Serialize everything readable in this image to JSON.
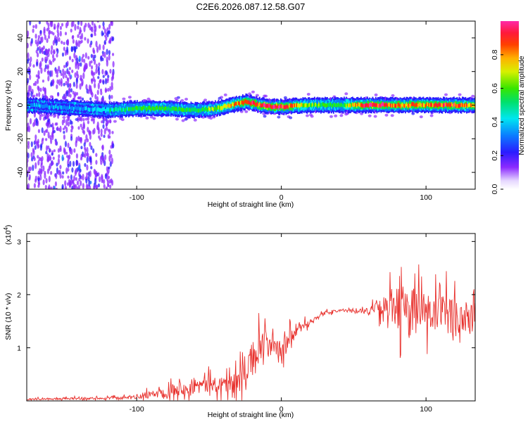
{
  "chart_data": [
    {
      "type": "heatmap",
      "title": "C2E6.2026.087.12.58.G07",
      "xlabel": "Height of straight line (km)",
      "ylabel": "Frequency (Hz)",
      "xlim": [
        -176,
        134
      ],
      "ylim": [
        -50,
        50
      ],
      "xticks": [
        -100,
        0,
        100
      ],
      "xtick_labels": [
        "-100",
        "0",
        "100"
      ],
      "yticks": [
        -40,
        -20,
        0,
        20,
        40
      ],
      "ytick_labels": [
        "-40",
        "-20",
        "0",
        "20",
        "40"
      ],
      "colorbar": {
        "label": "Normalized spectral amplitude",
        "range": [
          0,
          1
        ],
        "ticks": [
          0.0,
          0.2,
          0.4,
          0.6,
          0.8
        ],
        "tick_labels": [
          "0.0",
          "0.2",
          "0.4",
          "0.6",
          "0.8"
        ],
        "colormap": "rainbow (white-violet-blue-cyan-green-yellow-red-pink)"
      },
      "ridge": {
        "description": "Spectral ridge near 0 Hz; frequency trace center (Hz) vs height (km)",
        "x": [
          -176,
          -140,
          -120,
          -100,
          -80,
          -60,
          -45,
          -35,
          -25,
          -15,
          -5,
          0,
          20,
          40,
          60,
          80,
          100,
          120,
          134
        ],
        "y": [
          0,
          -2,
          -3,
          -2,
          -2,
          -3,
          -2,
          0,
          2,
          0,
          -1,
          -1,
          0,
          0,
          0,
          0,
          0,
          0,
          0
        ],
        "peak_amplitude": [
          0.3,
          0.3,
          0.4,
          0.5,
          0.5,
          0.5,
          0.6,
          0.7,
          0.85,
          0.9,
          0.9,
          0.9,
          0.55,
          0.5,
          0.9,
          0.8,
          0.8,
          0.85,
          0.7
        ]
      }
    },
    {
      "type": "line",
      "xlabel": "Height of straight line (km)",
      "ylabel": "SNR (10 * v/v)",
      "y_multiplier": "(x10",
      "y_multiplier_exp": "4",
      "y_multiplier_close": ")",
      "xlim": [
        -176,
        134
      ],
      "ylim": [
        0,
        3.15
      ],
      "xticks": [
        -100,
        0,
        100
      ],
      "xtick_labels": [
        "-100",
        "0",
        "100"
      ],
      "yticks": [
        1,
        2,
        3
      ],
      "ytick_labels": [
        "1",
        "2",
        "3"
      ],
      "series": [
        {
          "name": "SNR",
          "color": "#e8302c",
          "x": [
            -176,
            -150,
            -125,
            -110,
            -100,
            -90,
            -80,
            -70,
            -60,
            -50,
            -40,
            -30,
            -25,
            -20,
            -15,
            -10,
            -5,
            0,
            5,
            10,
            20,
            30,
            40,
            50,
            60,
            70,
            80,
            90,
            100,
            110,
            120,
            134
          ],
          "y": [
            0.03,
            0.04,
            0.05,
            0.05,
            0.08,
            0.12,
            0.18,
            0.25,
            0.28,
            0.3,
            0.32,
            0.35,
            0.55,
            0.8,
            1.0,
            1.1,
            0.95,
            0.9,
            1.15,
            1.3,
            1.5,
            1.65,
            1.7,
            1.7,
            1.7,
            1.75,
            1.75,
            1.7,
            1.65,
            1.6,
            1.6,
            1.55
          ],
          "spread": [
            0.02,
            0.03,
            0.03,
            0.04,
            0.06,
            0.1,
            0.15,
            0.2,
            0.22,
            0.22,
            0.25,
            0.3,
            0.4,
            0.45,
            0.45,
            0.35,
            0.3,
            0.3,
            0.25,
            0.15,
            0.08,
            0.05,
            0.03,
            0.03,
            0.08,
            0.25,
            0.6,
            0.7,
            0.6,
            0.55,
            0.55,
            0.55
          ]
        }
      ]
    }
  ],
  "colors": {
    "snr_line": "#e8302c",
    "axis": "#000000",
    "background": "#ffffff"
  }
}
